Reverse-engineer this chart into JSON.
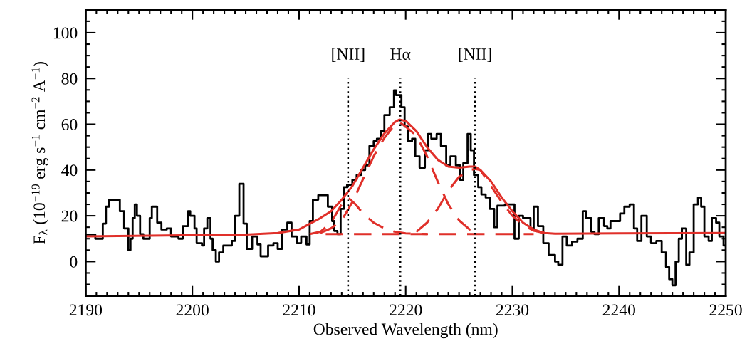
{
  "chart_data": {
    "type": "step",
    "xlabel": "Observed Wavelength (nm)",
    "ylabel": "F$_{λ}$ (10$^{−19}$ erg s$^{−1}$ cm$^{−2}$ A$^{−1}$)",
    "xlim": [
      2190,
      2250
    ],
    "xticks": [
      2190,
      2200,
      2210,
      2220,
      2230,
      2240,
      2250
    ],
    "ylim": [
      -15,
      110
    ],
    "yticks": [
      0,
      20,
      40,
      60,
      80,
      100
    ],
    "grid": false,
    "legend": false,
    "series": [
      {
        "color": "#000000",
        "line_style": "solid",
        "x": [
          2190,
          2190.9,
          2191.6,
          2191.9,
          2192.2,
          2193.2,
          2193.6,
          2194.0,
          2194.2,
          2194.4,
          2194.6,
          2194.8,
          2195.1,
          2195.4,
          2196.0,
          2196.2,
          2196.7,
          2197.1,
          2197.6,
          2198.0,
          2198.7,
          2199.1,
          2199.6,
          2199.8,
          2200.2,
          2200.4,
          2200.9,
          2201.1,
          2201.4,
          2201.7,
          2201.9,
          2202.2,
          2202.5,
          2202.9,
          2203.7,
          2204.0,
          2204.4,
          2204.8,
          2205.1,
          2205.6,
          2206.1,
          2206.4,
          2207.1,
          2207.6,
          2208.0,
          2208.4,
          2208.9,
          2209.3,
          2209.8,
          2210.2,
          2210.7,
          2211.0,
          2211.3,
          2211.8,
          2212.7,
          2213.1,
          2213.3,
          2213.6,
          2213.9,
          2214.2,
          2214.5,
          2215.0,
          2215.4,
          2215.8,
          2216.2,
          2216.6,
          2217.0,
          2217.3,
          2217.7,
          2218.0,
          2218.5,
          2218.9,
          2219.1,
          2219.6,
          2219.9,
          2220.2,
          2220.6,
          2220.9,
          2221.3,
          2221.8,
          2222.1,
          2222.4,
          2222.9,
          2223.3,
          2223.8,
          2224.2,
          2224.7,
          2225.1,
          2225.4,
          2225.8,
          2226.1,
          2226.4,
          2226.8,
          2227.1,
          2227.5,
          2227.9,
          2228.3,
          2228.6,
          2229.3,
          2229.7,
          2230.2,
          2230.6,
          2231.0,
          2231.7,
          2232.0,
          2232.4,
          2232.9,
          2233.4,
          2234.0,
          2234.3,
          2234.7,
          2235.1,
          2235.6,
          2236.1,
          2236.6,
          2236.9,
          2237.4,
          2237.7,
          2238.1,
          2238.6,
          2238.9,
          2239.2,
          2239.7,
          2240.1,
          2240.5,
          2241.0,
          2241.4,
          2241.7,
          2242.1,
          2242.6,
          2243.0,
          2243.5,
          2244.0,
          2244.4,
          2244.7,
          2245.0,
          2245.3,
          2245.6,
          2245.9,
          2246.3,
          2246.6,
          2247.0,
          2247.4,
          2247.7,
          2248.0,
          2248.4,
          2248.7,
          2249.1,
          2249.4,
          2249.8,
          2250
        ],
        "values": [
          11.8,
          10,
          16.6,
          24,
          27,
          22,
          14.5,
          5,
          10,
          19,
          25,
          20,
          12,
          10,
          19,
          24,
          17,
          14,
          14.5,
          11,
          10,
          15.5,
          22,
          20,
          14.5,
          8,
          7,
          14.5,
          19,
          10,
          5,
          0,
          4,
          7,
          9,
          20,
          34,
          16.6,
          5.5,
          11,
          7.5,
          2.3,
          7,
          8,
          5.5,
          14,
          17,
          11,
          8,
          11,
          7.5,
          17.7,
          27,
          29,
          24,
          17.7,
          13.4,
          12,
          23,
          32.5,
          33.5,
          35.7,
          37.8,
          40,
          42,
          50.5,
          52.6,
          53.7,
          57,
          64,
          67.4,
          74.8,
          72.7,
          67.4,
          59,
          52.6,
          53.7,
          46,
          41,
          48.6,
          55.8,
          53.7,
          55.8,
          50.5,
          42,
          46,
          42,
          35.7,
          43,
          55.8,
          48.6,
          37.8,
          32.5,
          29.3,
          28,
          23,
          15,
          24.4,
          25,
          25,
          10,
          20,
          19,
          14.5,
          24,
          15.5,
          8,
          2.9,
          0,
          -1.4,
          11,
          7,
          8.7,
          10,
          22,
          19,
          13,
          12,
          19,
          15.5,
          14.5,
          17.7,
          17.7,
          21,
          24,
          25,
          14.5,
          9,
          20,
          11,
          8,
          9,
          4,
          -2.4,
          -7.7,
          -10.4,
          0,
          10,
          14.5,
          -1.4,
          4,
          25,
          28,
          24,
          11,
          9,
          19,
          17,
          11,
          7,
          7
        ]
      },
      {
        "type": "line",
        "color": "#e0302a",
        "line_style": "solid",
        "x": [
          2190,
          2200,
          2205,
          2208,
          2210,
          2212,
          2213,
          2214,
          2215,
          2216,
          2217,
          2218,
          2219,
          2219.4,
          2220,
          2221,
          2222,
          2223,
          2224,
          2225,
          2226,
          2226.5,
          2227,
          2228,
          2229,
          2230,
          2231,
          2232,
          2233,
          2234,
          2240,
          2250
        ],
        "values": [
          11,
          11.5,
          11.8,
          12.5,
          14,
          19,
          22,
          27,
          33,
          41,
          49,
          56,
          61,
          62,
          61.5,
          57,
          50,
          44.5,
          41.5,
          41,
          41.5,
          41.5,
          40,
          35,
          28,
          22,
          17,
          14,
          12.5,
          12.2,
          12.3,
          12.5
        ]
      },
      {
        "type": "line",
        "color": "#e0302a",
        "line_style": "dashed",
        "x": [
          2211,
          2212,
          2213,
          2214,
          2214.6,
          2215.3,
          2216,
          2217,
          2218,
          2219,
          2220,
          2222
        ],
        "values": [
          12,
          13,
          17,
          25,
          28,
          25,
          21,
          17,
          14.5,
          13,
          12.3,
          12
        ]
      },
      {
        "type": "line",
        "color": "#e0302a",
        "line_style": "dashed",
        "x": [
          2212,
          2213,
          2214,
          2215,
          2216,
          2217,
          2218,
          2219,
          2219.4,
          2220,
          2221,
          2222,
          2223,
          2224,
          2225,
          2226,
          2227
        ],
        "values": [
          12.5,
          14.5,
          18,
          26,
          36,
          46,
          54,
          60,
          61,
          59,
          55,
          46,
          35,
          25,
          18,
          14,
          12.5
        ]
      },
      {
        "type": "line",
        "color": "#e0302a",
        "line_style": "dashed",
        "x": [
          2221,
          2222,
          2223,
          2224,
          2225,
          2226,
          2226.5,
          2227,
          2228,
          2229,
          2230,
          2231,
          2232,
          2233
        ],
        "values": [
          13,
          17,
          23,
          31,
          37,
          40,
          40.5,
          40,
          33,
          26,
          20,
          16,
          13.5,
          12.5
        ]
      },
      {
        "type": "line",
        "color": "#e0302a",
        "line_style": "dashed",
        "x": [
          2212.5,
          2232
        ],
        "values": [
          12,
          12
        ]
      }
    ],
    "ref_lines": [
      {
        "axis": "x",
        "value": 2214.6,
        "label": "[NII]",
        "color": "#000000",
        "line_style": "dotted"
      },
      {
        "axis": "x",
        "value": 2219.5,
        "label": "Hα",
        "color": "#000000",
        "line_style": "dotted"
      },
      {
        "axis": "x",
        "value": 2226.5,
        "label": "[NII]",
        "color": "#000000",
        "line_style": "dotted"
      }
    ]
  }
}
